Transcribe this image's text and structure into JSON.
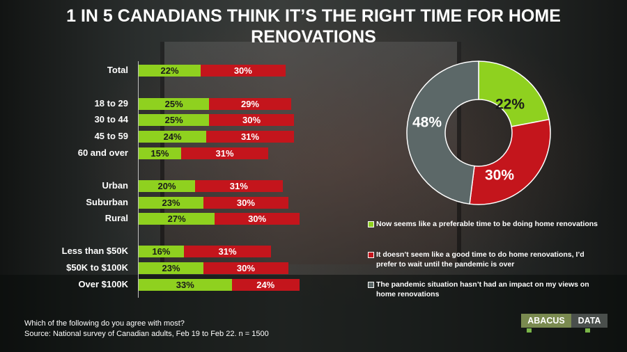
{
  "title": "1 IN 5 CANADIANS THINK IT’S THE RIGHT TIME FOR HOME RENOVATIONS",
  "footnote": {
    "question": "Which of the following do you agree with most?",
    "source": "Source: National survey of Canadian adults, Feb 19 to Feb 22. n = 1500"
  },
  "logo": {
    "left": "ABACUS",
    "right": "DATA"
  },
  "colors": {
    "green": "#8fd11f",
    "red": "#c4151c",
    "grey": "#5c6868"
  },
  "legend": [
    {
      "color": "#8fd11f",
      "text": "Now seems like a preferable time to be doing home renovations"
    },
    {
      "color": "#c4151c",
      "text": "It doesn’t seem like a good time to do home renovations, I’d prefer to wait until the pandemic is over"
    },
    {
      "color": "#5c6868",
      "text": "The pandemic situation hasn’t had an impact on my views on home renovations"
    }
  ],
  "chart_data": [
    {
      "type": "bar",
      "orientation": "horizontal",
      "stacked": true,
      "categories": [
        "Total",
        "18 to 29",
        "30 to 44",
        "45 to 59",
        "60 and over",
        "Urban",
        "Suburban",
        "Rural",
        "Less than $50K",
        "$50K to $100K",
        "Over $100K"
      ],
      "series": [
        {
          "name": "Now seems like a preferable time to be doing home renovations",
          "values": [
            22,
            25,
            25,
            24,
            15,
            20,
            23,
            27,
            16,
            23,
            33
          ],
          "labels": [
            "22%",
            "25%",
            "25%",
            "24%",
            "15%",
            "20%",
            "23%",
            "27%",
            "16%",
            "23%",
            "33%"
          ],
          "color": "#8fd11f"
        },
        {
          "name": "It doesn’t seem like a good time to do home renovations, I’d prefer to wait until the pandemic is over",
          "values": [
            30,
            29,
            30,
            31,
            31,
            31,
            30,
            30,
            31,
            30,
            24
          ],
          "labels": [
            "30%",
            "29%",
            "30%",
            "31%",
            "31%",
            "31%",
            "30%",
            "30%",
            "31%",
            "30%",
            "24%"
          ],
          "color": "#c4151c"
        }
      ]
    },
    {
      "type": "pie",
      "donut": true,
      "slices": [
        {
          "name": "Now seems like a preferable time to be doing home renovations",
          "value": 22,
          "label": "22%",
          "color": "#8fd11f"
        },
        {
          "name": "It doesn’t seem like a good time to do home renovations, I’d prefer to wait until the pandemic is over",
          "value": 30,
          "label": "30%",
          "color": "#c4151c"
        },
        {
          "name": "The pandemic situation hasn’t had an impact on my views on home renovations",
          "value": 48,
          "label": "48%",
          "color": "#5c6868"
        }
      ]
    }
  ]
}
